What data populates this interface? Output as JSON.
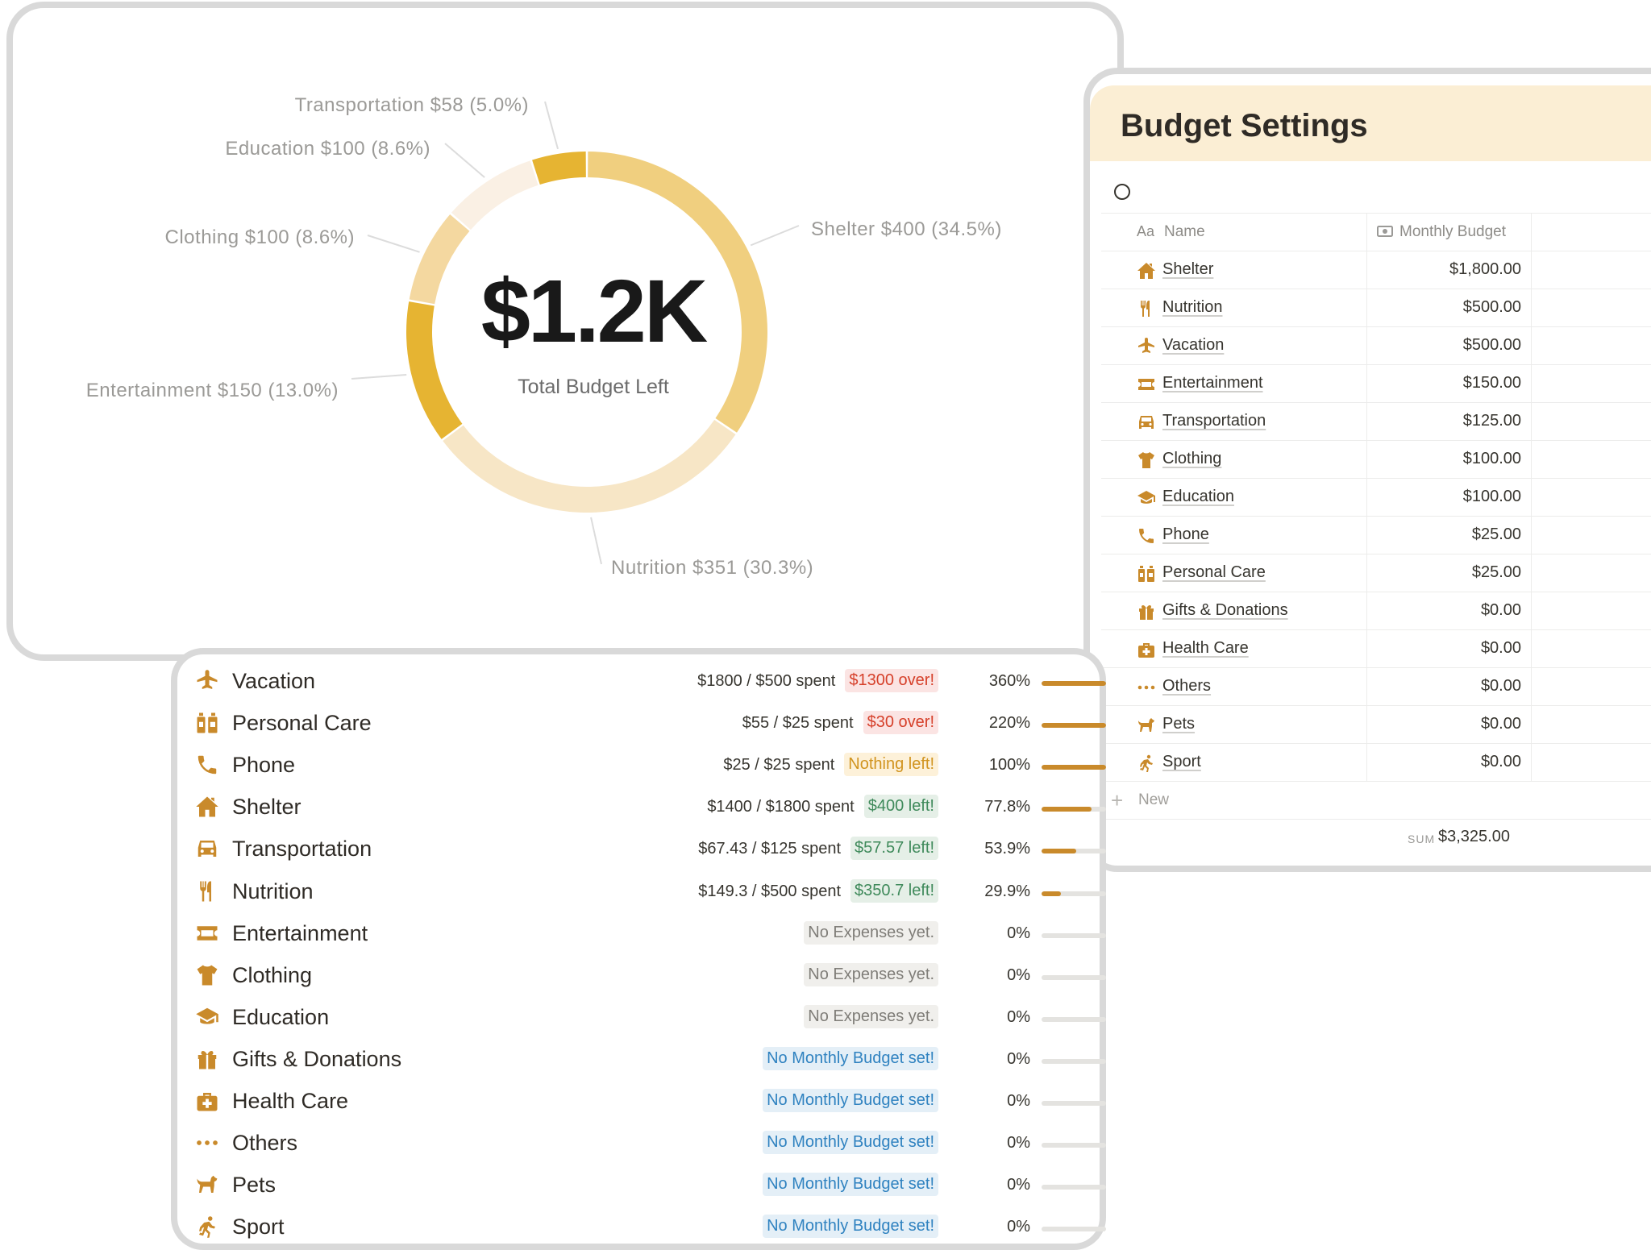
{
  "colors": {
    "accent": "#c98a2b",
    "gold": "#e6b432",
    "header_bg": "#fbeed4",
    "over_red": "#d6402a",
    "left_green": "#3f8a5b",
    "nobudget_blue": "#2f82c0"
  },
  "chart_data": {
    "type": "pie",
    "subtype": "donut",
    "center_value": "$1.2K",
    "center_label": "Total Budget Left",
    "slices": [
      {
        "label": "Shelter",
        "amount": "$400",
        "percent": "34.5%",
        "value": 34.5,
        "color": "#f0cf7f"
      },
      {
        "label": "Nutrition",
        "amount": "$351",
        "percent": "30.3%",
        "value": 30.3,
        "color": "#f7e6c6"
      },
      {
        "label": "Entertainment",
        "amount": "$150",
        "percent": "13.0%",
        "value": 13.0,
        "color": "#e6b432"
      },
      {
        "label": "Clothing",
        "amount": "$100",
        "percent": "8.6%",
        "value": 8.6,
        "color": "#f4d8a0"
      },
      {
        "label": "Education",
        "amount": "$100",
        "percent": "8.6%",
        "value": 8.6,
        "color": "#faf0e4"
      },
      {
        "label": "Transportation",
        "amount": "$58",
        "percent": "5.0%",
        "value": 5.0,
        "color": "#e6b432"
      }
    ]
  },
  "settings": {
    "title": "Budget Settings",
    "col_name": "Name",
    "col_name_icon": "Aa",
    "col_budget": "Monthly Budget",
    "col_budget_icon": "money-icon",
    "rows": [
      {
        "name": "Shelter",
        "amount": "$1,800.00",
        "icon": "house-icon"
      },
      {
        "name": "Nutrition",
        "amount": "$500.00",
        "icon": "fork-knife-icon"
      },
      {
        "name": "Vacation",
        "amount": "$500.00",
        "icon": "airplane-icon"
      },
      {
        "name": "Entertainment",
        "amount": "$150.00",
        "icon": "ticket-icon"
      },
      {
        "name": "Transportation",
        "amount": "$125.00",
        "icon": "car-icon"
      },
      {
        "name": "Clothing",
        "amount": "$100.00",
        "icon": "shirt-icon"
      },
      {
        "name": "Education",
        "amount": "$100.00",
        "icon": "graduation-cap-icon"
      },
      {
        "name": "Phone",
        "amount": "$25.00",
        "icon": "phone-icon"
      },
      {
        "name": "Personal Care",
        "amount": "$25.00",
        "icon": "bottles-icon"
      },
      {
        "name": "Gifts & Donations",
        "amount": "$0.00",
        "icon": "gift-icon"
      },
      {
        "name": "Health Care",
        "amount": "$0.00",
        "icon": "first-aid-icon"
      },
      {
        "name": "Others",
        "amount": "$0.00",
        "icon": "dots-icon"
      },
      {
        "name": "Pets",
        "amount": "$0.00",
        "icon": "dog-icon"
      },
      {
        "name": "Sport",
        "amount": "$0.00",
        "icon": "runner-icon"
      }
    ],
    "new_label": "New",
    "sum_key": "SUM",
    "sum_value": "$3,325.00"
  },
  "progress": [
    {
      "name": "Vacation",
      "icon": "airplane-icon",
      "spent": "$1800 / $500 spent",
      "status": "$1300 over!",
      "status_type": "over",
      "pct": "360%",
      "fill": 1.0
    },
    {
      "name": "Personal Care",
      "icon": "bottles-icon",
      "spent": "$55 / $25 spent",
      "status": "$30 over!",
      "status_type": "over",
      "pct": "220%",
      "fill": 1.0
    },
    {
      "name": "Phone",
      "icon": "phone-icon",
      "spent": "$25 / $25 spent",
      "status": "Nothing left!",
      "status_type": "zero",
      "pct": "100%",
      "fill": 1.0
    },
    {
      "name": "Shelter",
      "icon": "house-icon",
      "spent": "$1400 / $1800 spent",
      "status": "$400 left!",
      "status_type": "left",
      "pct": "77.8%",
      "fill": 0.778
    },
    {
      "name": "Transportation",
      "icon": "car-icon",
      "spent": "$67.43 / $125 spent",
      "status": "$57.57 left!",
      "status_type": "left",
      "pct": "53.9%",
      "fill": 0.539
    },
    {
      "name": "Nutrition",
      "icon": "fork-knife-icon",
      "spent": "$149.3 / $500 spent",
      "status": "$350.7 left!",
      "status_type": "left",
      "pct": "29.9%",
      "fill": 0.299
    },
    {
      "name": "Entertainment",
      "icon": "ticket-icon",
      "spent": "",
      "status": "No Expenses yet.",
      "status_type": "none",
      "pct": "0%",
      "fill": 0
    },
    {
      "name": "Clothing",
      "icon": "shirt-icon",
      "spent": "",
      "status": "No Expenses yet.",
      "status_type": "none",
      "pct": "0%",
      "fill": 0
    },
    {
      "name": "Education",
      "icon": "graduation-cap-icon",
      "spent": "",
      "status": "No Expenses yet.",
      "status_type": "none",
      "pct": "0%",
      "fill": 0
    },
    {
      "name": "Gifts & Donations",
      "icon": "gift-icon",
      "spent": "",
      "status": "No Monthly Budget set!",
      "status_type": "nobud",
      "pct": "0%",
      "fill": 0
    },
    {
      "name": "Health Care",
      "icon": "first-aid-icon",
      "spent": "",
      "status": "No Monthly Budget set!",
      "status_type": "nobud",
      "pct": "0%",
      "fill": 0
    },
    {
      "name": "Others",
      "icon": "dots-icon",
      "spent": "",
      "status": "No Monthly Budget set!",
      "status_type": "nobud",
      "pct": "0%",
      "fill": 0
    },
    {
      "name": "Pets",
      "icon": "dog-icon",
      "spent": "",
      "status": "No Monthly Budget set!",
      "status_type": "nobud",
      "pct": "0%",
      "fill": 0
    },
    {
      "name": "Sport",
      "icon": "runner-icon",
      "spent": "",
      "status": "No Monthly Budget set!",
      "status_type": "nobud",
      "pct": "0%",
      "fill": 0
    }
  ]
}
